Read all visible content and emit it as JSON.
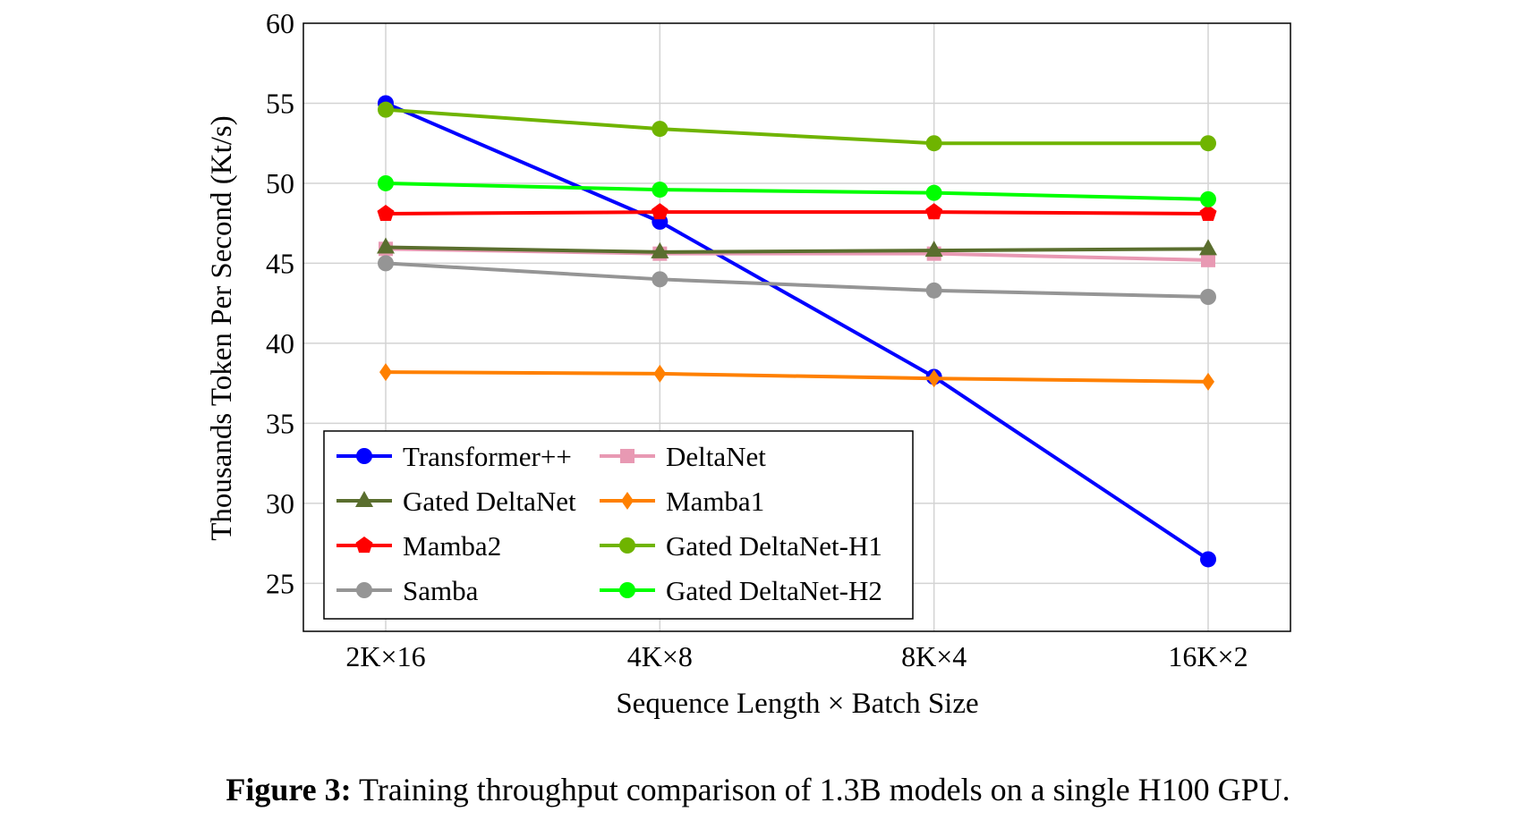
{
  "chart_data": {
    "type": "line",
    "xlabel": "Sequence Length × Batch Size",
    "ylabel": "Thousands Token Per Second (Kt/s)",
    "categories": [
      "2K×16",
      "4K×8",
      "8K×4",
      "16K×2"
    ],
    "ylim": [
      22,
      60
    ],
    "yticks": [
      25,
      30,
      35,
      40,
      45,
      50,
      55,
      60
    ],
    "grid": true,
    "legend_position": "bottom-left",
    "series": [
      {
        "name": "Transformer++",
        "color": "#0000ff",
        "marker": "circle",
        "values": [
          55.0,
          47.6,
          37.9,
          26.5
        ]
      },
      {
        "name": "DeltaNet",
        "color": "#e899b3",
        "marker": "square",
        "values": [
          45.9,
          45.6,
          45.6,
          45.2
        ]
      },
      {
        "name": "Gated DeltaNet",
        "color": "#5a6e2e",
        "marker": "triangle",
        "values": [
          46.0,
          45.7,
          45.8,
          45.9
        ]
      },
      {
        "name": "Mamba1",
        "color": "#ff8000",
        "marker": "diamond",
        "values": [
          38.2,
          38.1,
          37.8,
          37.6
        ]
      },
      {
        "name": "Mamba2",
        "color": "#ff0000",
        "marker": "pentagon",
        "values": [
          48.1,
          48.2,
          48.2,
          48.1
        ]
      },
      {
        "name": "Gated DeltaNet-H1",
        "color": "#6fb400",
        "marker": "circle",
        "values": [
          54.6,
          53.4,
          52.5,
          52.5
        ]
      },
      {
        "name": "Samba",
        "color": "#959595",
        "marker": "circle",
        "values": [
          45.0,
          44.0,
          43.3,
          42.9
        ]
      },
      {
        "name": "Gated DeltaNet-H2",
        "color": "#00ff00",
        "marker": "circle",
        "values": [
          50.0,
          49.6,
          49.4,
          49.0
        ]
      }
    ]
  },
  "caption": {
    "label": "Figure 3:",
    "text": " Training throughput comparison of 1.3B models on a single H100 GPU."
  }
}
